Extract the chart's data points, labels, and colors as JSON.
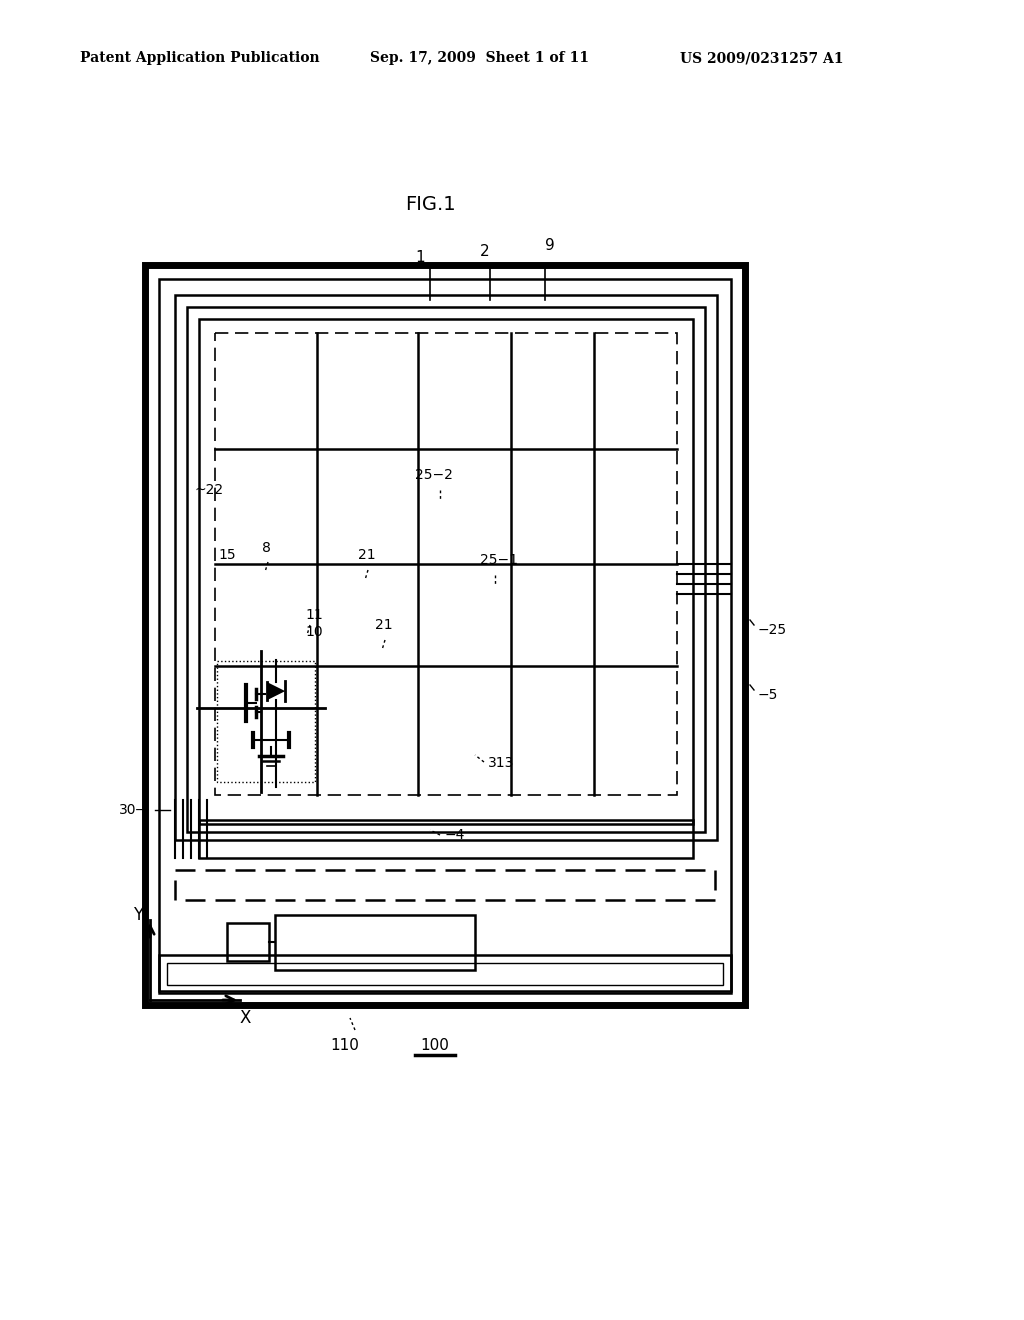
{
  "bg_color": "#ffffff",
  "header_left": "Patent Application Publication",
  "header_mid": "Sep. 17, 2009  Sheet 1 of 11",
  "header_right": "US 2009/0231257 A1",
  "fig_title": "FIG.1"
}
